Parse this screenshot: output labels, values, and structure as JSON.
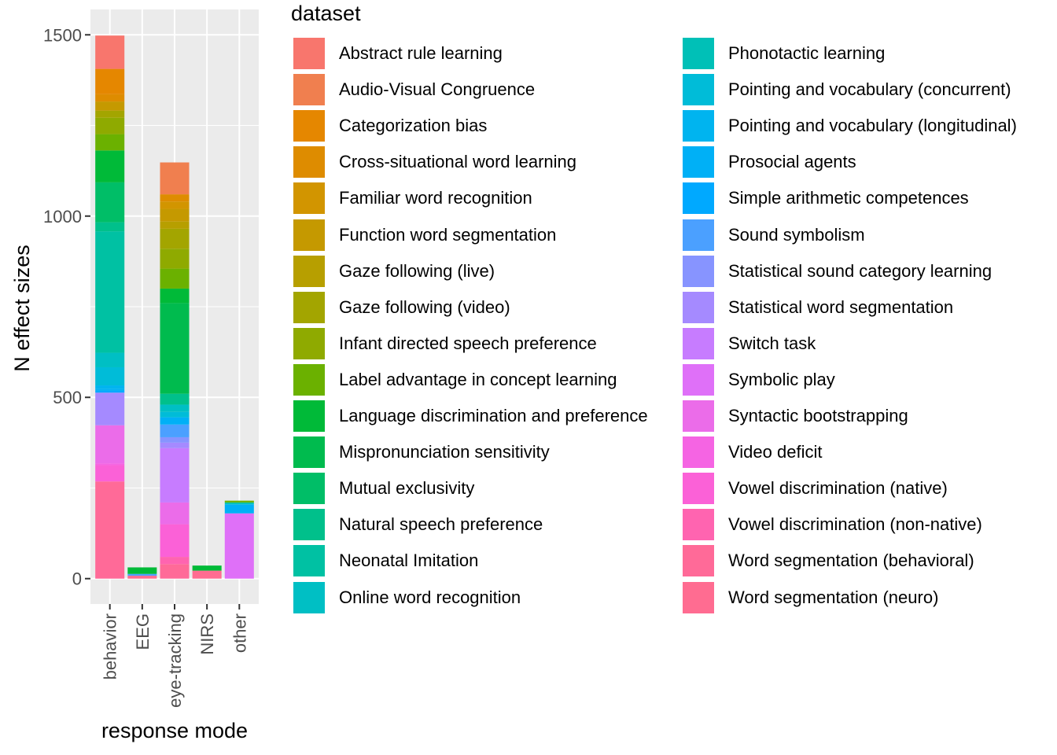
{
  "chart_data": {
    "type": "bar",
    "stacked": true,
    "xlabel": "response mode",
    "ylabel": "N effect sizes",
    "ylim": [
      -70,
      1570
    ],
    "yticks": [
      0,
      500,
      1000,
      1500
    ],
    "categories": [
      "behavior",
      "EEG",
      "eye-tracking",
      "NIRS",
      "other"
    ],
    "legend_title": "dataset",
    "legend_position": "right",
    "grid": true,
    "series": [
      {
        "name": "Abstract rule learning",
        "color": "#F8766D",
        "values": [
          92,
          0,
          0,
          0,
          0
        ]
      },
      {
        "name": "Audio-Visual Congruence",
        "color": "#F07F4F",
        "values": [
          0,
          0,
          88,
          0,
          0
        ]
      },
      {
        "name": "Categorization bias",
        "color": "#E58700",
        "values": [
          70,
          0,
          0,
          0,
          0
        ]
      },
      {
        "name": "Cross-situational word learning",
        "color": "#DE8C00",
        "values": [
          20,
          0,
          20,
          0,
          0
        ]
      },
      {
        "name": "Familiar word recognition",
        "color": "#D29500",
        "values": [
          0,
          0,
          20,
          0,
          0
        ]
      },
      {
        "name": "Function word segmentation",
        "color": "#C59900",
        "values": [
          25,
          0,
          35,
          0,
          0
        ]
      },
      {
        "name": "Gaze following (live)",
        "color": "#B79F00",
        "values": [
          0,
          0,
          20,
          0,
          0
        ]
      },
      {
        "name": "Gaze following (video)",
        "color": "#A3A500",
        "values": [
          20,
          0,
          55,
          0,
          0
        ]
      },
      {
        "name": "Infant directed speech preference",
        "color": "#8FAA00",
        "values": [
          45,
          0,
          55,
          0,
          0
        ]
      },
      {
        "name": "Label advantage in concept learning",
        "color": "#6BB100",
        "values": [
          45,
          0,
          55,
          0,
          5
        ]
      },
      {
        "name": "Language discrimination and preference",
        "color": "#00BA38",
        "values": [
          88,
          18,
          40,
          14,
          0
        ]
      },
      {
        "name": "Mispronunciation sensitivity",
        "color": "#00BB4E",
        "values": [
          0,
          0,
          250,
          0,
          0
        ]
      },
      {
        "name": "Mutual exclusivity",
        "color": "#00BE67",
        "values": [
          110,
          0,
          0,
          0,
          0
        ]
      },
      {
        "name": "Natural speech preference",
        "color": "#00C08B",
        "values": [
          25,
          0,
          30,
          0,
          0
        ]
      },
      {
        "name": "Neonatal Imitation",
        "color": "#00C1A3",
        "values": [
          335,
          0,
          0,
          0,
          0
        ]
      },
      {
        "name": "Online word recognition",
        "color": "#00BFC4",
        "values": [
          40,
          0,
          20,
          0,
          0
        ]
      },
      {
        "name": "Phonotactic learning",
        "color": "#00C0B7",
        "values": [
          0,
          0,
          0,
          0,
          5
        ]
      },
      {
        "name": "Pointing and vocabulary (concurrent)",
        "color": "#00BCD8",
        "values": [
          50,
          0,
          15,
          0,
          0
        ]
      },
      {
        "name": "Pointing and vocabulary (longitudinal)",
        "color": "#00B4EF",
        "values": [
          10,
          0,
          0,
          0,
          0
        ]
      },
      {
        "name": "Prosocial agents",
        "color": "#00B0F6",
        "values": [
          5,
          0,
          20,
          0,
          25
        ]
      },
      {
        "name": "Simple arithmetic competences",
        "color": "#00A9FF",
        "values": [
          5,
          0,
          0,
          0,
          0
        ]
      },
      {
        "name": "Sound symbolism",
        "color": "#4BA0FF",
        "values": [
          0,
          5,
          35,
          0,
          0
        ]
      },
      {
        "name": "Statistical sound category learning",
        "color": "#8794FF",
        "values": [
          0,
          0,
          15,
          0,
          0
        ]
      },
      {
        "name": "Statistical word segmentation",
        "color": "#A58AFF",
        "values": [
          90,
          0,
          15,
          0,
          0
        ]
      },
      {
        "name": "Switch task",
        "color": "#C77CFF",
        "values": [
          0,
          0,
          150,
          0,
          0
        ]
      },
      {
        "name": "Symbolic play",
        "color": "#DF70F8",
        "values": [
          0,
          0,
          0,
          0,
          180
        ]
      },
      {
        "name": "Syntactic bootstrapping",
        "color": "#EB6CE9",
        "values": [
          105,
          0,
          60,
          0,
          0
        ]
      },
      {
        "name": "Video deficit",
        "color": "#F564E3",
        "values": [
          5,
          0,
          0,
          0,
          0
        ]
      },
      {
        "name": "Vowel discrimination (native)",
        "color": "#FB61D7",
        "values": [
          45,
          0,
          90,
          0,
          0
        ]
      },
      {
        "name": "Vowel discrimination (non-native)",
        "color": "#FF64B0",
        "values": [
          0,
          0,
          20,
          0,
          0
        ]
      },
      {
        "name": "Word segmentation (behavioral)",
        "color": "#FF6A98",
        "values": [
          268,
          0,
          40,
          0,
          0
        ]
      },
      {
        "name": "Word segmentation (neuro)",
        "color": "#FF6C91",
        "values": [
          0,
          8,
          0,
          22,
          0
        ]
      }
    ]
  }
}
